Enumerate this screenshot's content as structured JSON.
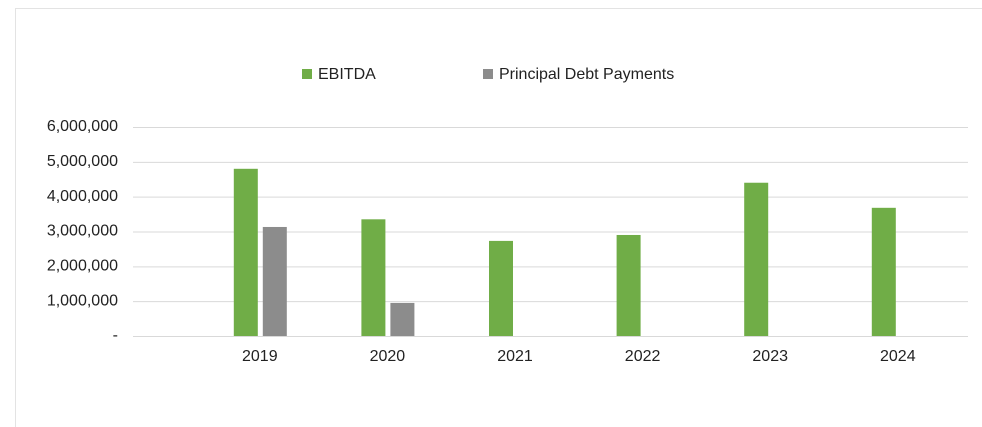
{
  "chart_data": {
    "type": "bar",
    "categories": [
      "2019",
      "2020",
      "2021",
      "2022",
      "2023",
      "2024"
    ],
    "series": [
      {
        "name": "EBITDA",
        "color": "#70ad47",
        "values": [
          4800000,
          3350000,
          2730000,
          2900000,
          4400000,
          3680000
        ]
      },
      {
        "name": "Principal Debt Payments",
        "color": "#8c8c8c",
        "values": [
          3130000,
          950000,
          null,
          null,
          null,
          null
        ]
      }
    ],
    "ylim": [
      0,
      6000000
    ],
    "yticks": [
      {
        "value": 0,
        "label": "-"
      },
      {
        "value": 1000000,
        "label": "1,000,000"
      },
      {
        "value": 2000000,
        "label": "2,000,000"
      },
      {
        "value": 3000000,
        "label": "3,000,000"
      },
      {
        "value": 4000000,
        "label": "4,000,000"
      },
      {
        "value": 5000000,
        "label": "5,000,000"
      },
      {
        "value": 6000000,
        "label": "6,000,000"
      }
    ],
    "grid": true,
    "legend": "top"
  }
}
